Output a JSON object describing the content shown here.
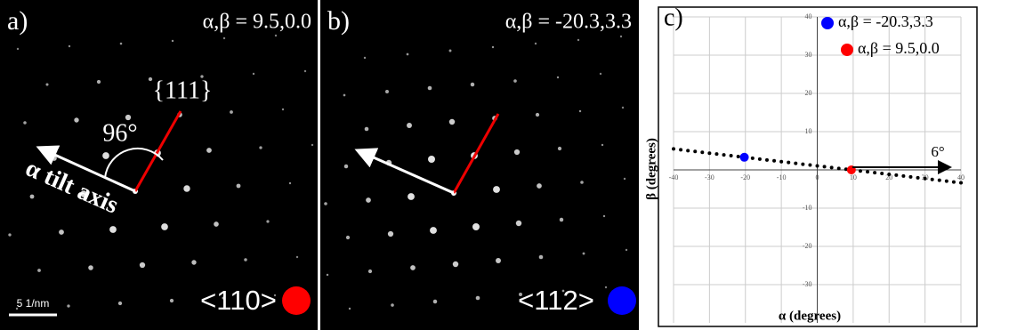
{
  "panels": [
    {
      "label": "a)",
      "angles": "α,β = 9.5,0.0",
      "plane": "{111}",
      "angle": "96°",
      "axis_label": "α tilt axis",
      "zone": "<110>",
      "scale_bar": "5 1/nm"
    },
    {
      "label": "b)",
      "angles": "α,β = -20.3,3.3",
      "zone": "<112>"
    }
  ],
  "chart_data": {
    "type": "scatter",
    "panel_label": "c)",
    "xlabel": "α (degrees)",
    "ylabel": "β (degrees)",
    "annotation": "6°",
    "xlim": [
      -40,
      40
    ],
    "ylim": [
      -40,
      40
    ],
    "xticks": [
      -40,
      -30,
      -20,
      -10,
      0,
      10,
      20,
      30,
      40
    ],
    "yticks": [
      -30,
      -20,
      -10,
      10,
      20,
      30,
      40
    ],
    "grid": true,
    "series": [
      {
        "name": "α,β = -20.3,3.3",
        "color": "#0000ff",
        "x": [
          -20.3
        ],
        "values": [
          3.3
        ]
      },
      {
        "name": "α,β = 9.5,0.0",
        "color": "#ff0000",
        "x": [
          9.5
        ],
        "values": [
          0.0
        ]
      },
      {
        "color": "#000000",
        "x": [
          -40,
          -38,
          -36,
          -34,
          -32,
          -30,
          -28,
          -26,
          -24,
          -22,
          -20,
          -18,
          -16,
          -14,
          -12,
          -10,
          -8,
          -6,
          -4,
          -2,
          0,
          2,
          4,
          6,
          8,
          10,
          12,
          14,
          16,
          18,
          20,
          22,
          24,
          26,
          28,
          30,
          32,
          34,
          36,
          38,
          40
        ],
        "values": [
          5.48,
          5.26,
          5.04,
          4.82,
          4.6,
          4.37,
          4.15,
          3.93,
          3.71,
          3.49,
          3.27,
          3.05,
          2.82,
          2.6,
          2.38,
          2.16,
          1.94,
          1.72,
          1.49,
          1.27,
          1.05,
          0.83,
          0.61,
          0.39,
          0.17,
          -0.06,
          -0.28,
          -0.5,
          -0.72,
          -0.94,
          -1.16,
          -1.38,
          -1.61,
          -1.83,
          -2.05,
          -2.27,
          -2.49,
          -2.71,
          -2.93,
          -3.16,
          -3.38
        ]
      }
    ]
  }
}
